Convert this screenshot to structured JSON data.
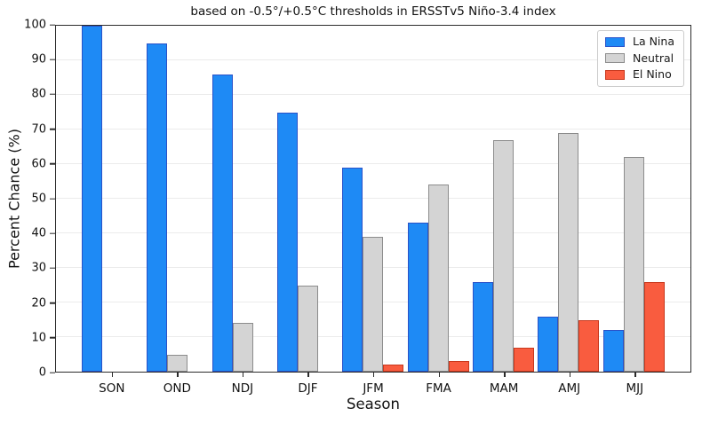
{
  "chart_data": {
    "type": "bar",
    "title": "based on -0.5°/+0.5°C thresholds in ERSSTv5 Niño-3.4 index",
    "xlabel": "Season",
    "ylabel": "Percent Chance (%)",
    "ylim": [
      0,
      100
    ],
    "ytick_step": 10,
    "grid": true,
    "legend_position": "upper right",
    "categories": [
      "SON",
      "OND",
      "NDJ",
      "DJF",
      "JFM",
      "FMA",
      "MAM",
      "AMJ",
      "MJJ"
    ],
    "series": [
      {
        "name": "La Nina",
        "color": "#1e8af5",
        "edge_color": "#2a52c8",
        "values": [
          100,
          95,
          86,
          75,
          59,
          43,
          26,
          16,
          12
        ]
      },
      {
        "name": "Neutral",
        "color": "#d4d4d4",
        "edge_color": "#8c8c8c",
        "values": [
          0,
          5,
          14,
          25,
          39,
          54,
          67,
          69,
          62
        ]
      },
      {
        "name": "El Nino",
        "color": "#f95c3f",
        "edge_color": "#c8381d",
        "values": [
          0,
          0,
          0,
          0,
          2,
          3,
          7,
          15,
          26
        ]
      }
    ]
  }
}
